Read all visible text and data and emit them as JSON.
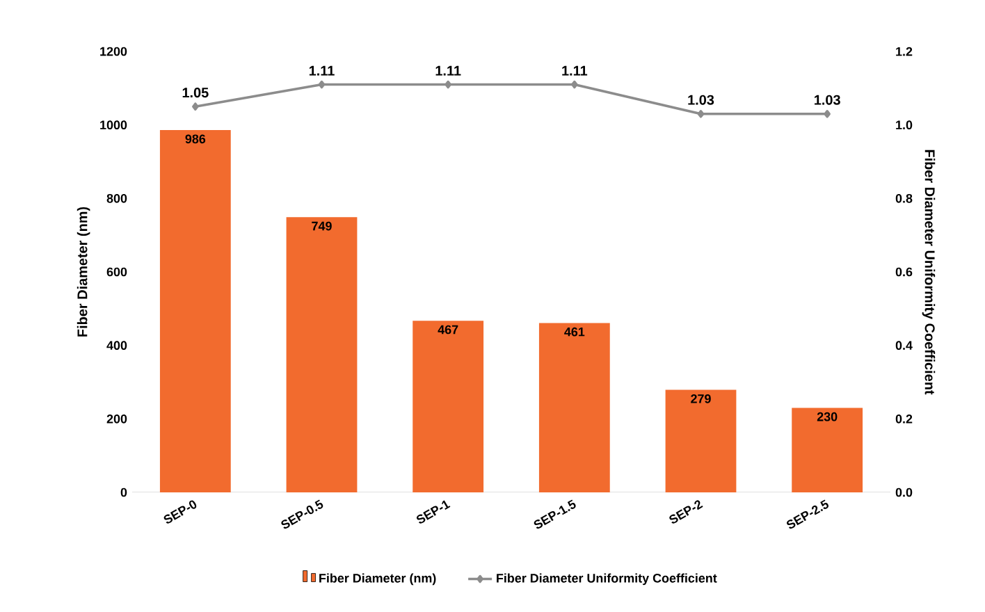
{
  "chart_data": {
    "type": "bar",
    "categories": [
      "SEP-0",
      "SEP-0.5",
      "SEP-1",
      "SEP-1.5",
      "SEP-2",
      "SEP-2.5"
    ],
    "ylabel": "Fiber Diameter (nm)",
    "y2label": "Fiber Diameter  Uniformity Coefficient",
    "ylim": [
      0,
      1200
    ],
    "yticks": [
      0,
      200,
      400,
      600,
      800,
      1000,
      1200
    ],
    "y2lim": [
      0,
      1.2
    ],
    "y2ticks": [
      {
        "value": 0,
        "label": "0.0"
      },
      {
        "value": 0.2,
        "label": "0.2"
      },
      {
        "value": 0.4,
        "label": "0.4"
      },
      {
        "value": 0.6,
        "label": "0.6"
      },
      {
        "value": 0.8,
        "label": "0.8"
      },
      {
        "value": 1.0,
        "label": "1.0"
      },
      {
        "value": 1.2,
        "label": "1.2"
      }
    ],
    "series": [
      {
        "name": "Fiber Diameter (nm)",
        "color": "#f26b2e",
        "values": [
          986,
          749,
          467,
          461,
          279,
          230
        ]
      },
      {
        "name": "Fiber Diameter Uniformity Coefficient",
        "type": "line",
        "axis": "y2",
        "color": "#8c8c8c",
        "marker": "diamond",
        "values": [
          1.05,
          1.11,
          1.11,
          1.11,
          1.03,
          1.03
        ]
      }
    ],
    "data_labels": true,
    "legend": "bottom",
    "grid": false
  }
}
